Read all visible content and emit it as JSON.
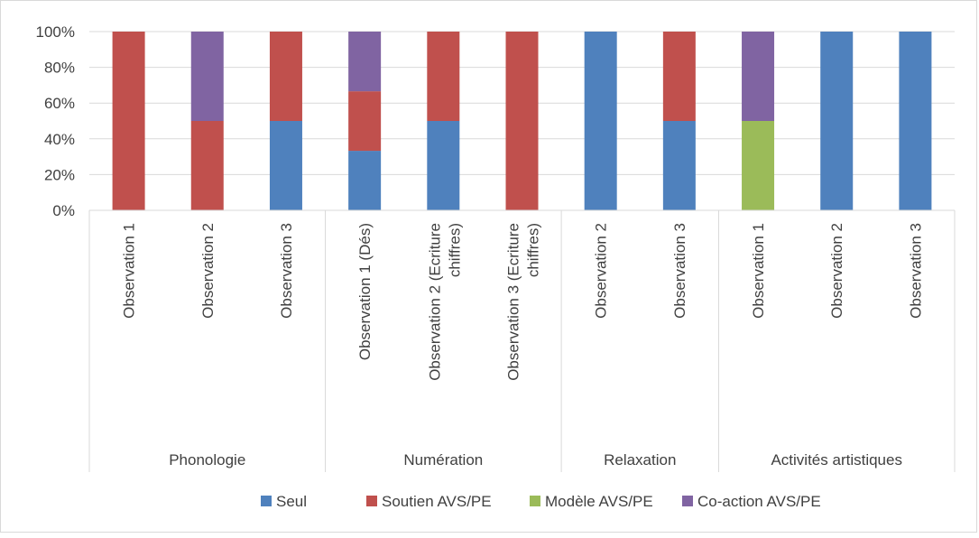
{
  "chart_data": {
    "type": "bar",
    "stacked": true,
    "percent": true,
    "groups": [
      {
        "name": "Phonologie",
        "categories": [
          "Observation 1",
          "Observation 2",
          "Observation 3"
        ]
      },
      {
        "name": "Numération",
        "categories": [
          "Observation 1 (Dés)",
          "Observation 2 (Ecriture chiffres)",
          "Observation 3 (Ecriture chiffres)"
        ]
      },
      {
        "name": "Relaxation",
        "categories": [
          "Observation 2",
          "Observation 3"
        ]
      },
      {
        "name": "Activités artistiques",
        "categories": [
          "Observation 1",
          "Observation 2",
          "Observation 3"
        ]
      }
    ],
    "series": [
      {
        "name": "Seul",
        "color": "#4f81bd",
        "values": [
          0,
          0,
          50,
          33.3,
          50,
          0,
          100,
          50,
          0,
          100,
          100
        ]
      },
      {
        "name": "Soutien AVS/PE",
        "color": "#c0504d",
        "values": [
          100,
          50,
          50,
          33.3,
          50,
          100,
          0,
          50,
          0,
          0,
          0
        ]
      },
      {
        "name": "Modèle AVS/PE",
        "color": "#9bbb59",
        "values": [
          0,
          0,
          0,
          0,
          0,
          0,
          0,
          0,
          50,
          0,
          0
        ]
      },
      {
        "name": "Co-action AVS/PE",
        "color": "#8064a2",
        "values": [
          0,
          50,
          0,
          33.4,
          0,
          0,
          0,
          0,
          50,
          0,
          0
        ]
      }
    ],
    "yticks": [
      "0%",
      "20%",
      "40%",
      "60%",
      "80%",
      "100%"
    ],
    "ylim": [
      0,
      100
    ],
    "grid": true,
    "legend": "bottom"
  }
}
